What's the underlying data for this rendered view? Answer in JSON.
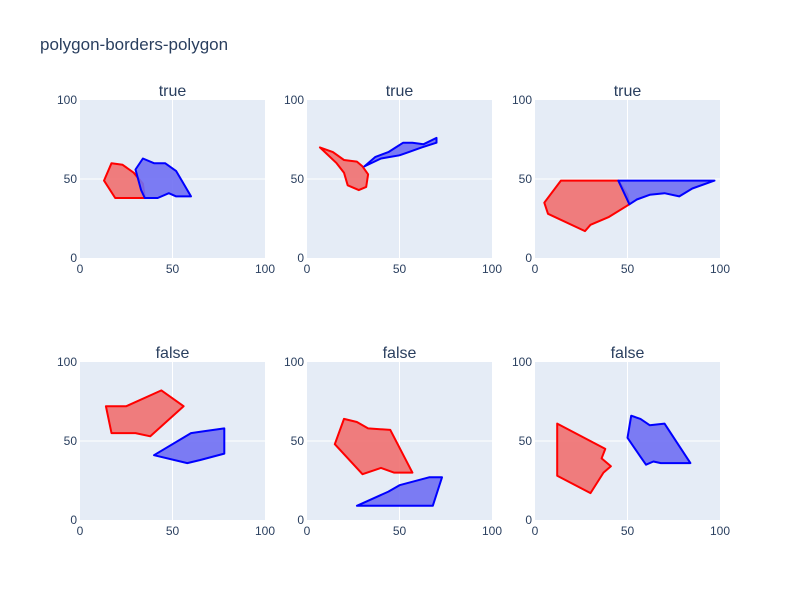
{
  "title": "polygon-borders-polygon",
  "colors": {
    "plot_bg": "#e5ecf6",
    "grid": "#ffffff",
    "red_fill": "#f07070",
    "red_stroke": "#ff0000",
    "blue_fill": "#6f6ff3",
    "blue_stroke": "#0000ff",
    "text": "#2a3f5f"
  },
  "chart_data": [
    {
      "type": "area",
      "title": "true",
      "xlim": [
        0,
        100
      ],
      "ylim": [
        0,
        100
      ],
      "xticks": [
        "0",
        "50",
        "100"
      ],
      "yticks": [
        "0",
        "50",
        "100"
      ],
      "grid": true,
      "series": [
        {
          "color": "red",
          "points": [
            [
              13,
              49
            ],
            [
              17,
              60
            ],
            [
              23,
              59
            ],
            [
              29,
              54
            ],
            [
              34,
              47
            ],
            [
              35,
              38
            ],
            [
              19,
              38
            ],
            [
              13,
              49
            ]
          ]
        },
        {
          "color": "blue",
          "points": [
            [
              30,
              56
            ],
            [
              34,
              63
            ],
            [
              40,
              60
            ],
            [
              46,
              60
            ],
            [
              52,
              55
            ],
            [
              55,
              49
            ],
            [
              60,
              39
            ],
            [
              52,
              39
            ],
            [
              48,
              41
            ],
            [
              42,
              38
            ],
            [
              35,
              38
            ],
            [
              33,
              43
            ],
            [
              30,
              56
            ]
          ]
        }
      ]
    },
    {
      "type": "area",
      "title": "true",
      "xlim": [
        0,
        100
      ],
      "ylim": [
        0,
        100
      ],
      "xticks": [
        "0",
        "50",
        "100"
      ],
      "yticks": [
        "0",
        "50",
        "100"
      ],
      "grid": true,
      "series": [
        {
          "color": "red",
          "points": [
            [
              7,
              70
            ],
            [
              14,
              67
            ],
            [
              20,
              62
            ],
            [
              27,
              61
            ],
            [
              30,
              58
            ],
            [
              33,
              53
            ],
            [
              32,
              45
            ],
            [
              28,
              43
            ],
            [
              22,
              46
            ],
            [
              20,
              54
            ],
            [
              16,
              60
            ],
            [
              7,
              70
            ]
          ]
        },
        {
          "color": "blue",
          "points": [
            [
              31,
              58
            ],
            [
              37,
              64
            ],
            [
              44,
              67
            ],
            [
              48,
              70
            ],
            [
              52,
              73
            ],
            [
              57,
              73
            ],
            [
              63,
              72
            ],
            [
              70,
              76
            ],
            [
              70,
              73
            ],
            [
              62,
              70
            ],
            [
              55,
              67
            ],
            [
              50,
              65
            ],
            [
              45,
              64
            ],
            [
              40,
              63
            ],
            [
              31,
              58
            ]
          ]
        }
      ]
    },
    {
      "type": "area",
      "title": "true",
      "xlim": [
        0,
        100
      ],
      "ylim": [
        0,
        100
      ],
      "xticks": [
        "0",
        "50",
        "100"
      ],
      "yticks": [
        "0",
        "50",
        "100"
      ],
      "grid": true,
      "series": [
        {
          "color": "red",
          "points": [
            [
              5,
              35
            ],
            [
              14,
              49
            ],
            [
              45,
              49
            ],
            [
              50,
              40
            ],
            [
              51,
              34
            ],
            [
              40,
              26
            ],
            [
              30,
              21
            ],
            [
              27,
              17
            ],
            [
              7,
              28
            ],
            [
              5,
              35
            ]
          ]
        },
        {
          "color": "blue",
          "points": [
            [
              45,
              49
            ],
            [
              97,
              49
            ],
            [
              85,
              44
            ],
            [
              78,
              39
            ],
            [
              70,
              41
            ],
            [
              62,
              40
            ],
            [
              55,
              37
            ],
            [
              51,
              34
            ],
            [
              45,
              49
            ]
          ]
        }
      ]
    },
    {
      "type": "area",
      "title": "false",
      "xlim": [
        0,
        100
      ],
      "ylim": [
        0,
        100
      ],
      "xticks": [
        "0",
        "50",
        "100"
      ],
      "yticks": [
        "0",
        "50",
        "100"
      ],
      "grid": true,
      "series": [
        {
          "color": "red",
          "points": [
            [
              14,
              72
            ],
            [
              17,
              55
            ],
            [
              30,
              55
            ],
            [
              38,
              53
            ],
            [
              56,
              72
            ],
            [
              44,
              82
            ],
            [
              25,
              72
            ],
            [
              14,
              72
            ]
          ]
        },
        {
          "color": "blue",
          "points": [
            [
              40,
              41
            ],
            [
              60,
              55
            ],
            [
              66,
              56
            ],
            [
              78,
              58
            ],
            [
              78,
              42
            ],
            [
              65,
              38
            ],
            [
              58,
              36
            ],
            [
              40,
              41
            ]
          ]
        }
      ]
    },
    {
      "type": "area",
      "title": "false",
      "xlim": [
        0,
        100
      ],
      "ylim": [
        0,
        100
      ],
      "xticks": [
        "0",
        "50",
        "100"
      ],
      "yticks": [
        "0",
        "50",
        "100"
      ],
      "grid": true,
      "series": [
        {
          "color": "red",
          "points": [
            [
              15,
              48
            ],
            [
              20,
              64
            ],
            [
              27,
              62
            ],
            [
              33,
              58
            ],
            [
              45,
              57
            ],
            [
              57,
              30
            ],
            [
              47,
              30
            ],
            [
              40,
              33
            ],
            [
              30,
              29
            ],
            [
              15,
              48
            ]
          ]
        },
        {
          "color": "blue",
          "points": [
            [
              27,
              9
            ],
            [
              44,
              18
            ],
            [
              50,
              22
            ],
            [
              66,
              27
            ],
            [
              73,
              27
            ],
            [
              68,
              9
            ],
            [
              27,
              9
            ]
          ]
        }
      ]
    },
    {
      "type": "area",
      "title": "false",
      "xlim": [
        0,
        100
      ],
      "ylim": [
        0,
        100
      ],
      "xticks": [
        "0",
        "50",
        "100"
      ],
      "yticks": [
        "0",
        "50",
        "100"
      ],
      "grid": true,
      "series": [
        {
          "color": "red",
          "points": [
            [
              12,
              61
            ],
            [
              12,
              28
            ],
            [
              30,
              17
            ],
            [
              37,
              30
            ],
            [
              41,
              34
            ],
            [
              36,
              39
            ],
            [
              38,
              45
            ],
            [
              12,
              61
            ]
          ]
        },
        {
          "color": "blue",
          "points": [
            [
              50,
              52
            ],
            [
              52,
              66
            ],
            [
              57,
              64
            ],
            [
              62,
              60
            ],
            [
              70,
              61
            ],
            [
              84,
              36
            ],
            [
              68,
              36
            ],
            [
              64,
              37
            ],
            [
              60,
              35
            ],
            [
              57,
              40
            ],
            [
              50,
              52
            ]
          ]
        }
      ]
    }
  ]
}
